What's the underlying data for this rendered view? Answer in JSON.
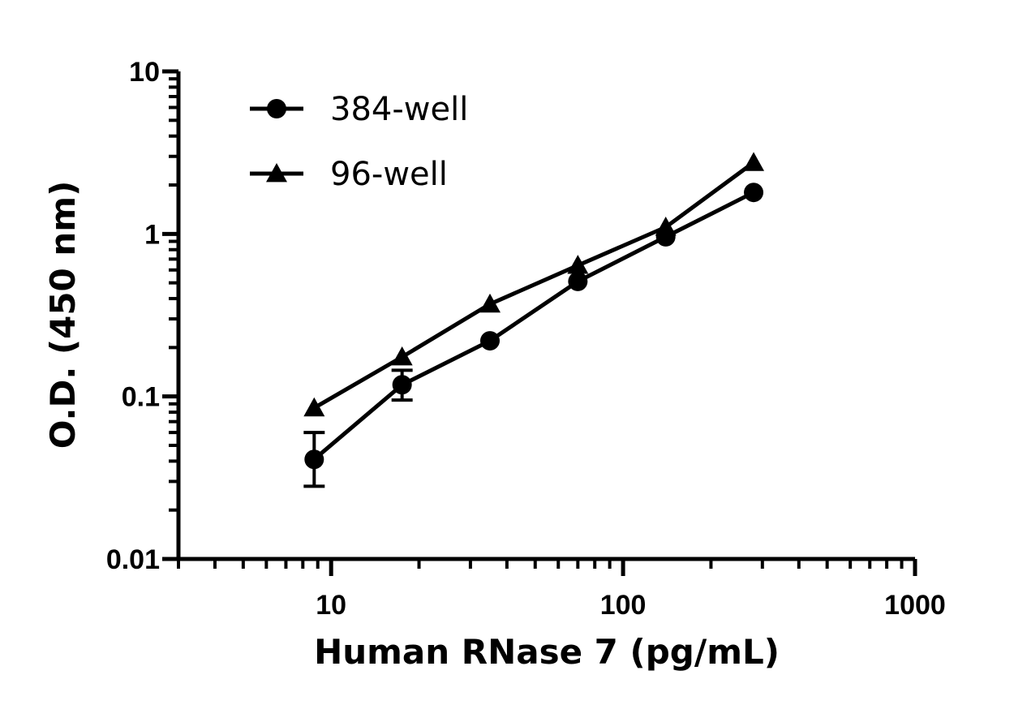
{
  "chart_data": {
    "type": "line",
    "xlabel": "Human RNase 7 (pg/mL)",
    "ylabel": "O.D. (450 nm)",
    "xscale": "log",
    "yscale": "log",
    "xlim": [
      3,
      1000
    ],
    "ylim": [
      0.01,
      10
    ],
    "xticks": [
      {
        "value": 10,
        "label": "10"
      },
      {
        "value": 100,
        "label": "100"
      },
      {
        "value": 1000,
        "label": "1000"
      }
    ],
    "yticks": [
      {
        "value": 0.01,
        "label": "0.01"
      },
      {
        "value": 0.1,
        "label": "0.1"
      },
      {
        "value": 1,
        "label": "1"
      },
      {
        "value": 10,
        "label": "10"
      }
    ],
    "grid": false,
    "legend_position": "top-left",
    "series": [
      {
        "name": "384-well",
        "marker": "circle",
        "color": "#000000",
        "x": [
          8.75,
          17.5,
          35,
          70,
          140,
          280
        ],
        "y": [
          0.041,
          0.118,
          0.22,
          0.51,
          0.96,
          1.8
        ],
        "error": [
          {
            "low": 0.028,
            "high": 0.06
          },
          {
            "low": 0.095,
            "high": 0.145
          },
          null,
          null,
          null,
          null
        ]
      },
      {
        "name": "96-well",
        "marker": "triangle",
        "color": "#000000",
        "x": [
          8.75,
          17.5,
          35,
          70,
          140,
          280
        ],
        "y": [
          0.085,
          0.175,
          0.37,
          0.64,
          1.1,
          2.75
        ],
        "error": [
          null,
          null,
          null,
          null,
          null,
          null
        ]
      }
    ]
  }
}
